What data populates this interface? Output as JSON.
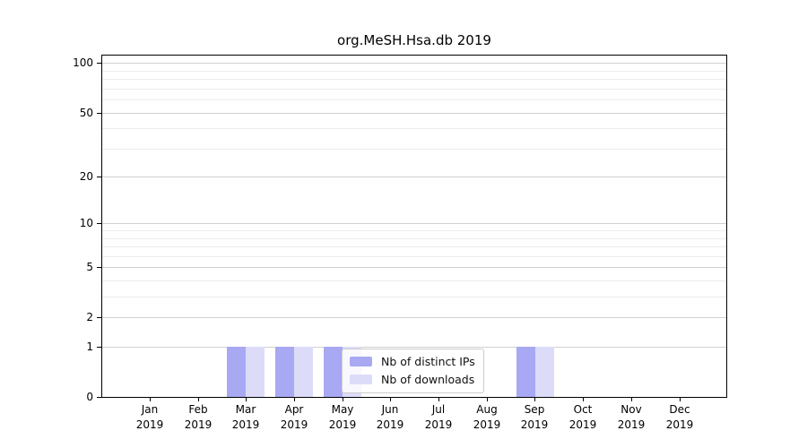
{
  "chart_data": {
    "type": "bar",
    "title": "org.MeSH.Hsa.db 2019",
    "categories": [
      "Jan",
      "Feb",
      "Mar",
      "Apr",
      "May",
      "Jun",
      "Jul",
      "Aug",
      "Sep",
      "Oct",
      "Nov",
      "Dec"
    ],
    "category_year": "2019",
    "series": [
      {
        "name": "Nb of distinct IPs",
        "color": "#a8a8f3",
        "values": [
          0,
          0,
          1,
          1,
          1,
          0,
          0,
          0,
          1,
          0,
          0,
          0
        ]
      },
      {
        "name": "Nb of downloads",
        "color": "#dcdcf8",
        "values": [
          0,
          0,
          1,
          1,
          1,
          0,
          0,
          0,
          1,
          0,
          0,
          0
        ]
      }
    ],
    "xlabel": "",
    "ylabel": "",
    "y_scale": "log1p",
    "ylim": [
      0,
      110
    ],
    "y_tick_values": [
      0,
      1,
      2,
      5,
      10,
      20,
      50,
      100
    ],
    "y_minor_gridlines": [
      3,
      4,
      6,
      7,
      8,
      9,
      30,
      40,
      60,
      70,
      80,
      90
    ],
    "grid": true,
    "legend_position": "inside-bottom-center",
    "colors": {
      "axis": "#000000",
      "grid_major": "#d0d0d0",
      "grid_minor": "#ececec",
      "legend_border": "#cccccc",
      "background": "#ffffff"
    }
  }
}
